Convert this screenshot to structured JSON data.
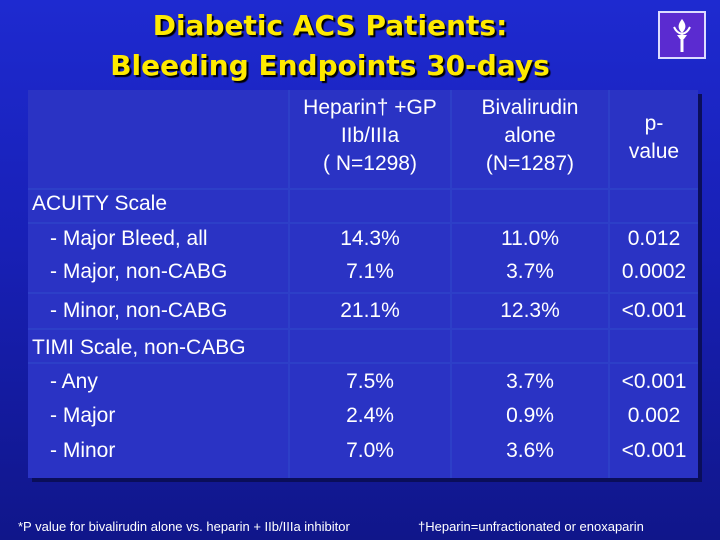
{
  "title": {
    "line1": "Diabetic ACS Patients:",
    "line2": "Bleeding Endpoints 30-days"
  },
  "logo": {
    "icon": "torch-icon"
  },
  "table": {
    "headers": {
      "heparin": [
        "Heparin† +GP",
        "IIb/IIIa",
        "( N=1298)"
      ],
      "bivalirudin": [
        "Bivalirudin",
        "alone",
        "(N=1287)"
      ],
      "pvalue": [
        "p-",
        "value"
      ]
    },
    "sections": [
      {
        "label": "ACUITY Scale",
        "rows": [
          {
            "label": "- Major Bleed, all",
            "heparin": "14.3%",
            "bivalirudin": "11.0%",
            "p": "0.012"
          },
          {
            "label": "- Major, non-CABG",
            "heparin": "7.1%",
            "bivalirudin": "3.7%",
            "p": "0.0002"
          },
          {
            "label": "- Minor, non-CABG",
            "heparin": "21.1%",
            "bivalirudin": "12.3%",
            "p": "<0.001"
          }
        ]
      },
      {
        "label": "TIMI Scale, non-CABG",
        "rows": [
          {
            "label": "- Any",
            "heparin": "7.5%",
            "bivalirudin": "3.7%",
            "p": "<0.001"
          },
          {
            "label": "- Major",
            "heparin": "2.4%",
            "bivalirudin": "0.9%",
            "p": "0.002"
          },
          {
            "label": "- Minor",
            "heparin": "7.0%",
            "bivalirudin": "3.6%",
            "p": "<0.001"
          }
        ]
      }
    ]
  },
  "footnotes": {
    "left": "*P value for bivalirudin alone vs. heparin + IIb/IIIa inhibitor",
    "right": "†Heparin=unfractionated or enoxaparin"
  },
  "colors": {
    "title": "#ffea00",
    "background": "#1e2ad0",
    "text": "#ffffff"
  }
}
